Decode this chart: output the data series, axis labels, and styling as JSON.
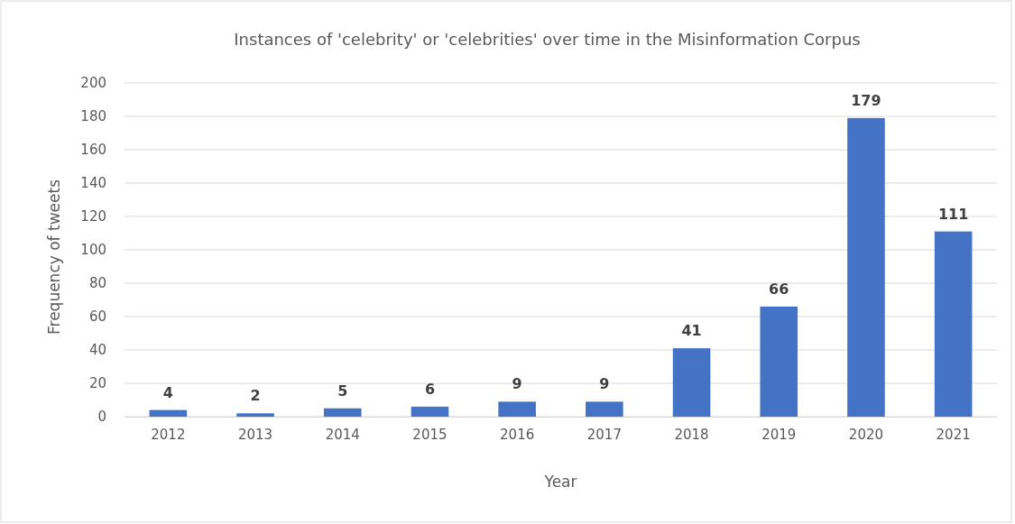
{
  "chart_data": {
    "type": "bar",
    "title": "Instances of 'celebrity' or 'celebrities' over time in the Misinformation Corpus",
    "xlabel": "Year",
    "ylabel": "Frequency of tweets",
    "categories": [
      "2012",
      "2013",
      "2014",
      "2015",
      "2016",
      "2017",
      "2018",
      "2019",
      "2020",
      "2021"
    ],
    "values": [
      4,
      2,
      5,
      6,
      9,
      9,
      41,
      66,
      179,
      111
    ],
    "color": "#4472c4",
    "ylim": [
      0,
      200
    ],
    "yticks": [
      0,
      20,
      40,
      60,
      80,
      100,
      120,
      140,
      160,
      180,
      200
    ],
    "grid": "y",
    "data_labels": true
  }
}
